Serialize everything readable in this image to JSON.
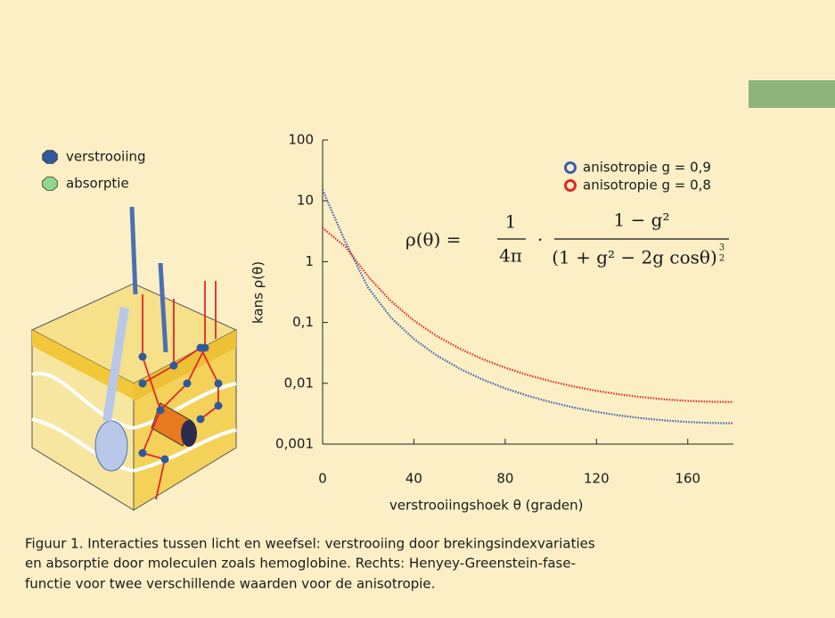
{
  "chart_data": {
    "type": "line",
    "x_label": "verstrooiingshoek θ (graden)",
    "y_label": "kans ρ(θ)",
    "x": [
      0,
      10,
      20,
      30,
      40,
      50,
      60,
      70,
      80,
      90,
      100,
      110,
      120,
      130,
      140,
      150,
      160,
      170,
      180
    ],
    "series": [
      {
        "name": "anisotropie g = 0,9",
        "color": "#3a5fae",
        "values": [
          15.12,
          2.1,
          0.37,
          0.12,
          0.0534,
          0.02865,
          0.01742,
          0.01158,
          0.00825,
          0.00621,
          0.00489,
          0.004,
          0.00339,
          0.00296,
          0.00266,
          0.00245,
          0.00231,
          0.00223,
          0.0022
        ]
      },
      {
        "name": "anisotropie g = 0,8",
        "color": "#e0262a",
        "values": [
          3.58,
          1.757,
          0.568,
          0.2233,
          0.1074,
          0.0599,
          0.0372,
          0.02508,
          0.01802,
          0.01364,
          0.01079,
          0.00886,
          0.00752,
          0.00657,
          0.00591,
          0.00544,
          0.00514,
          0.00497,
          0.00491
        ]
      }
    ],
    "xlim": [
      0,
      180
    ],
    "xticks": [
      0,
      40,
      80,
      120,
      160
    ],
    "ylim": [
      0.001,
      100
    ],
    "yticks": [
      100,
      10,
      1,
      {
        "value": 0.1,
        "label": "0,1"
      },
      {
        "value": 0.01,
        "label": "0,01"
      },
      {
        "value": 0.001,
        "label": "0,001"
      }
    ],
    "yscale": "log",
    "legend": "top-right"
  },
  "formula": {
    "lhs": "ρ(θ) =",
    "num1": "1",
    "den1": "4π",
    "dot": "·",
    "num2": "1 − g²",
    "den2": "(1 + g² − 2g cosθ)",
    "exp_num": "3",
    "exp_den": "2"
  },
  "illustration": {
    "legend": [
      {
        "label": "verstrooiing",
        "color": "#2e5a9c"
      },
      {
        "label": "absorptie",
        "color": "#8fd68f"
      }
    ]
  },
  "caption": [
    "Figuur 1. Interacties tussen licht en weefsel: verstrooiing door brekingsindexvariaties",
    "en absorptie door moleculen zoals hemoglobine. Rechts: Henyey-Greenstein-fase-",
    "functie voor twee verschillende waarden voor de anisotropie."
  ]
}
